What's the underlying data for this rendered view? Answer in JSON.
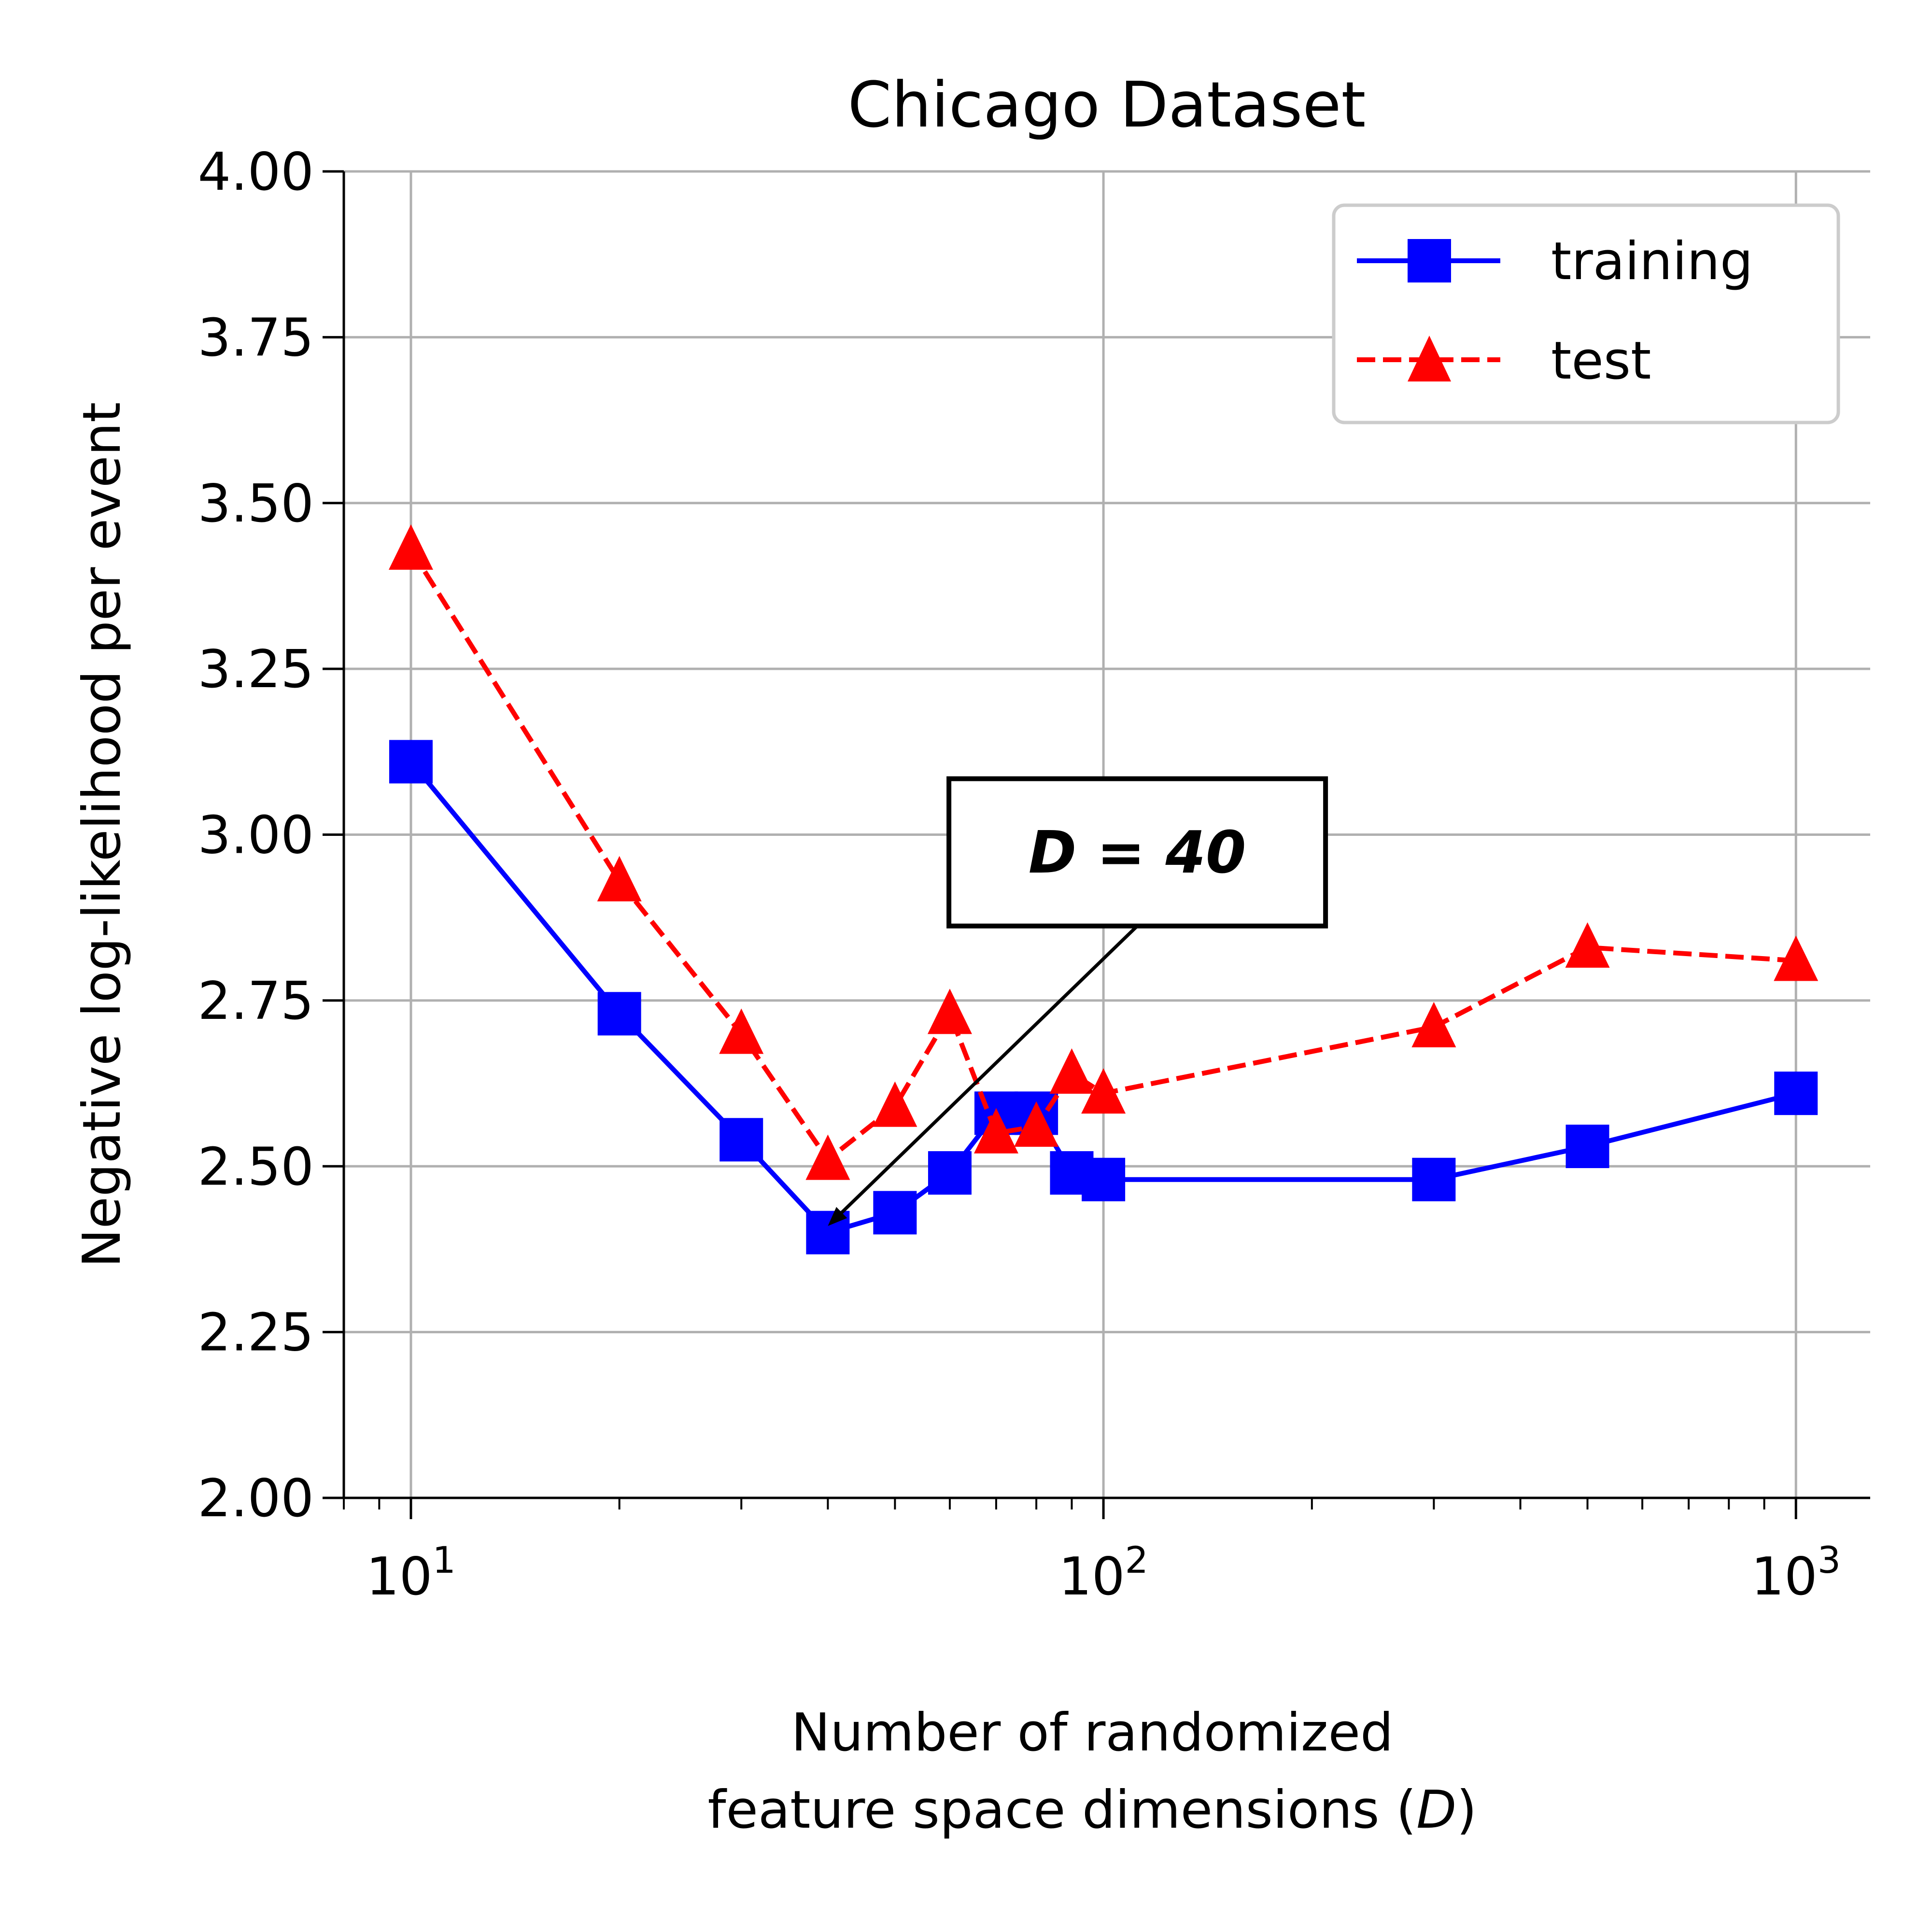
{
  "chart_data": {
    "type": "line",
    "title": "Chicago Dataset",
    "xlabel_line1": "Number of randomized",
    "xlabel_line2_prefix": "feature space dimensions (",
    "xlabel_line2_var": "D",
    "xlabel_line2_suffix": ")",
    "ylabel": "Negative log-likelihood per event",
    "xscale": "log",
    "xlim": [
      8,
      1280
    ],
    "ylim": [
      2.0,
      4.0
    ],
    "yticks": [
      "2.00",
      "2.25",
      "2.50",
      "2.75",
      "3.00",
      "3.25",
      "3.50",
      "3.75",
      "4.00"
    ],
    "xticks": [
      {
        "base": "10",
        "exp": "1",
        "value": 10
      },
      {
        "base": "10",
        "exp": "2",
        "value": 100
      },
      {
        "base": "10",
        "exp": "3",
        "value": 1000
      }
    ],
    "grid": true,
    "legend_position": "top-right",
    "series": [
      {
        "name": "training",
        "color": "#0000ff",
        "marker": "square",
        "linestyle": "solid",
        "x": [
          10,
          20,
          30,
          40,
          50,
          60,
          70,
          80,
          90,
          100,
          300,
          500,
          1000
        ],
        "y": [
          3.11,
          2.73,
          2.54,
          2.4,
          2.43,
          2.49,
          2.58,
          2.58,
          2.49,
          2.48,
          2.48,
          2.53,
          2.61
        ]
      },
      {
        "name": "test",
        "color": "#ff0000",
        "marker": "triangle",
        "linestyle": "dashed",
        "x": [
          10,
          20,
          30,
          40,
          50,
          60,
          70,
          80,
          90,
          100,
          300,
          500,
          1000
        ],
        "y": [
          3.43,
          2.93,
          2.7,
          2.51,
          2.59,
          2.73,
          2.55,
          2.56,
          2.64,
          2.61,
          2.71,
          2.83,
          2.81
        ]
      }
    ],
    "annotation": {
      "text": "D = 40",
      "target_x": 40,
      "target_y": 2.41,
      "box_center_x": 100,
      "box_center_y": 2.95
    }
  }
}
